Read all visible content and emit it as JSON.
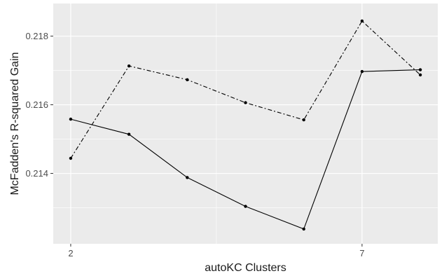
{
  "chart_data": {
    "type": "line",
    "title": "",
    "xlabel": "autoKC Clusters",
    "ylabel": "McFadden's R-squared Gain",
    "xlim": [
      1.7,
      8.3
    ],
    "ylim": [
      0.21195,
      0.21895
    ],
    "x_major_ticks": [
      2,
      7
    ],
    "x_tick_labels": [
      "2",
      "7"
    ],
    "x_minor_ticks": [
      4.5
    ],
    "y_major_ticks": [
      0.214,
      0.216,
      0.218
    ],
    "y_tick_labels": [
      "0.214",
      "0.216",
      "0.218"
    ],
    "y_minor_ticks": [
      0.213,
      0.215,
      0.217
    ],
    "grid": true,
    "legend": "none",
    "background": "#ebebeb",
    "series": [
      {
        "line_style": "solid",
        "color": "#000000",
        "x": [
          2,
          3,
          4,
          5,
          6,
          7,
          8
        ],
        "values": [
          0.21558,
          0.21514,
          0.21388,
          0.21304,
          0.21238,
          0.21697,
          0.21702
        ]
      },
      {
        "line_style": "dashed",
        "color": "#000000",
        "x": [
          2,
          3,
          4,
          5,
          6,
          7,
          8
        ],
        "values": [
          0.21444,
          0.21713,
          0.21673,
          0.21606,
          0.21556,
          0.21844,
          0.21687
        ]
      }
    ]
  }
}
